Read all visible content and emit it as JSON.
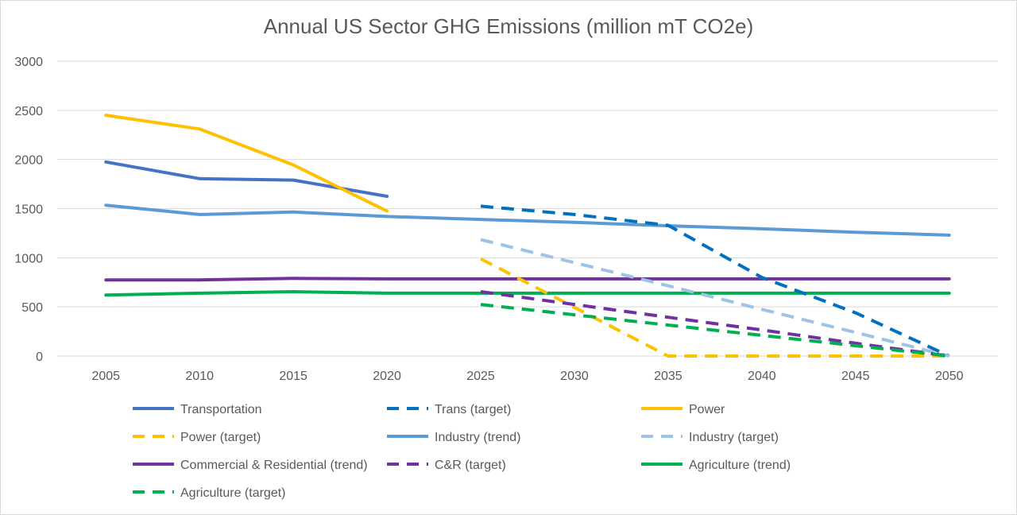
{
  "chart_data": {
    "type": "line",
    "title": "Annual US Sector GHG Emissions (million mT CO2e)",
    "xlabel": "",
    "ylabel": "",
    "x": [
      2005,
      2010,
      2015,
      2020,
      2025,
      2030,
      2035,
      2040,
      2045,
      2050
    ],
    "ylim": [
      0,
      3000
    ],
    "yticks": [
      0,
      500,
      1000,
      1500,
      2000,
      2500,
      3000
    ],
    "grid": true,
    "legend_position": "bottom",
    "series": [
      {
        "name": "Transportation",
        "color": "#4472C4",
        "dash": false,
        "points": [
          [
            2005,
            1975
          ],
          [
            2010,
            1805
          ],
          [
            2015,
            1790
          ],
          [
            2020,
            1625
          ]
        ]
      },
      {
        "name": "Trans (target)",
        "color": "#0070C0",
        "dash": true,
        "points": [
          [
            2025,
            1525
          ],
          [
            2030,
            1440
          ],
          [
            2035,
            1330
          ],
          [
            2040,
            800
          ],
          [
            2045,
            440
          ],
          [
            2050,
            0
          ]
        ]
      },
      {
        "name": "Power",
        "color": "#FFC000",
        "dash": false,
        "points": [
          [
            2005,
            2450
          ],
          [
            2010,
            2310
          ],
          [
            2015,
            1945
          ],
          [
            2020,
            1475
          ]
        ]
      },
      {
        "name": "Power (target)",
        "color": "#FFC000",
        "dash": true,
        "points": [
          [
            2025,
            990
          ],
          [
            2030,
            495
          ],
          [
            2035,
            0
          ],
          [
            2040,
            0
          ],
          [
            2045,
            0
          ],
          [
            2050,
            0
          ]
        ]
      },
      {
        "name": "Industry (trend)",
        "color": "#5B9BD5",
        "dash": false,
        "points": [
          [
            2005,
            1535
          ],
          [
            2010,
            1440
          ],
          [
            2015,
            1465
          ],
          [
            2020,
            1420
          ],
          [
            2025,
            1390
          ],
          [
            2030,
            1360
          ],
          [
            2035,
            1325
          ],
          [
            2040,
            1295
          ],
          [
            2045,
            1260
          ],
          [
            2050,
            1230
          ]
        ]
      },
      {
        "name": "Industry (target)",
        "color": "#9DC3E6",
        "dash": true,
        "points": [
          [
            2025,
            1185
          ],
          [
            2030,
            950
          ],
          [
            2035,
            715
          ],
          [
            2040,
            475
          ],
          [
            2045,
            240
          ],
          [
            2050,
            0
          ]
        ]
      },
      {
        "name": "Commercial & Residential (trend)",
        "color": "#7030A0",
        "dash": false,
        "points": [
          [
            2005,
            775
          ],
          [
            2010,
            775
          ],
          [
            2015,
            790
          ],
          [
            2020,
            785
          ],
          [
            2025,
            785
          ],
          [
            2030,
            785
          ],
          [
            2035,
            785
          ],
          [
            2040,
            785
          ],
          [
            2045,
            785
          ],
          [
            2050,
            785
          ]
        ]
      },
      {
        "name": "C&R (target)",
        "color": "#7030A0",
        "dash": true,
        "points": [
          [
            2025,
            655
          ],
          [
            2030,
            525
          ],
          [
            2035,
            395
          ],
          [
            2040,
            265
          ],
          [
            2045,
            130
          ],
          [
            2050,
            0
          ]
        ]
      },
      {
        "name": "Agriculture (trend)",
        "color": "#00B050",
        "dash": false,
        "points": [
          [
            2005,
            620
          ],
          [
            2010,
            640
          ],
          [
            2015,
            655
          ],
          [
            2020,
            640
          ],
          [
            2025,
            640
          ],
          [
            2030,
            640
          ],
          [
            2035,
            640
          ],
          [
            2040,
            640
          ],
          [
            2045,
            640
          ],
          [
            2050,
            640
          ]
        ]
      },
      {
        "name": "Agriculture (target)",
        "color": "#00B050",
        "dash": true,
        "points": [
          [
            2025,
            525
          ],
          [
            2030,
            420
          ],
          [
            2035,
            315
          ],
          [
            2040,
            210
          ],
          [
            2045,
            105
          ],
          [
            2050,
            0
          ]
        ]
      }
    ]
  }
}
